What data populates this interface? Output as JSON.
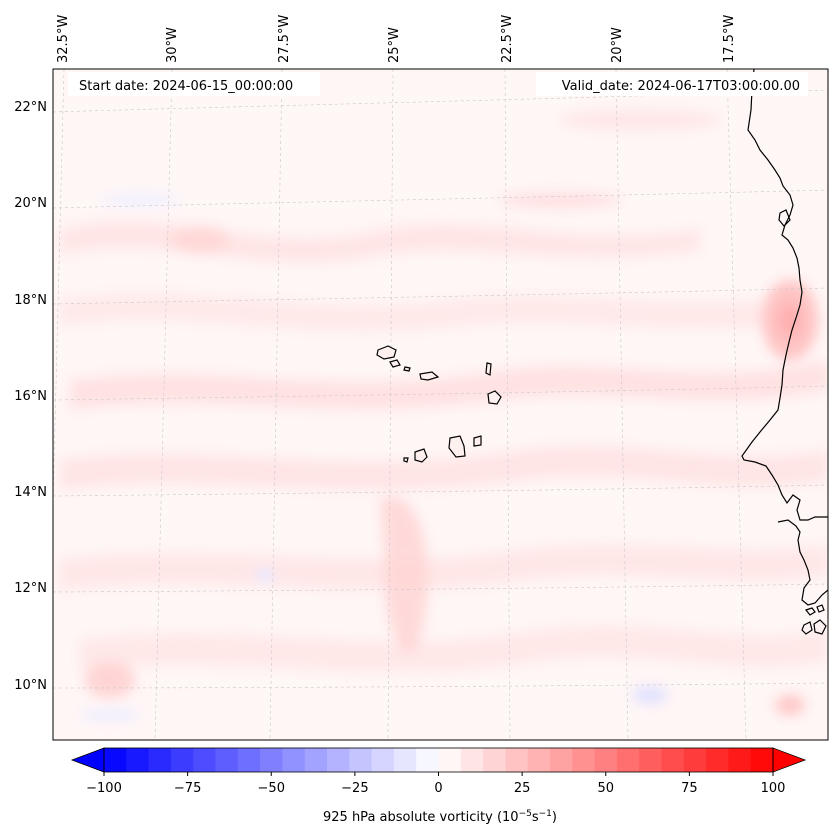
{
  "map": {
    "start_date_label": "Start date: 2024-06-15_00:00:00",
    "valid_date_label": "Valid_date: 2024-06-17T03:00:00.00",
    "lon_labels": [
      "32.5°W",
      "30°W",
      "27.5°W",
      "25°W",
      "22.5°W",
      "20°W",
      "17.5°W"
    ],
    "lat_labels": [
      "22°N",
      "20°N",
      "18°N",
      "16°N",
      "14°N",
      "12°N",
      "10°N"
    ],
    "extent": {
      "lon_min": -33.0,
      "lon_max": -15.5,
      "lat_min": 8.8,
      "lat_max": 22.8
    },
    "field": "925 hPa absolute vorticity",
    "colors": {
      "negative": "#0000ff",
      "zero": "#ffffff",
      "positive": "#ff0000",
      "coast": "#000000",
      "grid": "#c8c8c8"
    },
    "features": [
      "Cape Verde islands",
      "West African coastline (Mauritania, Senegal, Guinea-Bissau)"
    ]
  },
  "colorbar": {
    "ticks": [
      "−100",
      "−75",
      "−50",
      "−25",
      "0",
      "25",
      "50",
      "75",
      "100"
    ],
    "label": "925 hPa absolute vorticity (10",
    "label_exp1": "−5",
    "label_mid": "s",
    "label_exp2": "−1",
    "label_end": ")",
    "vmin": -100,
    "vmax": 100,
    "levels": 30
  }
}
